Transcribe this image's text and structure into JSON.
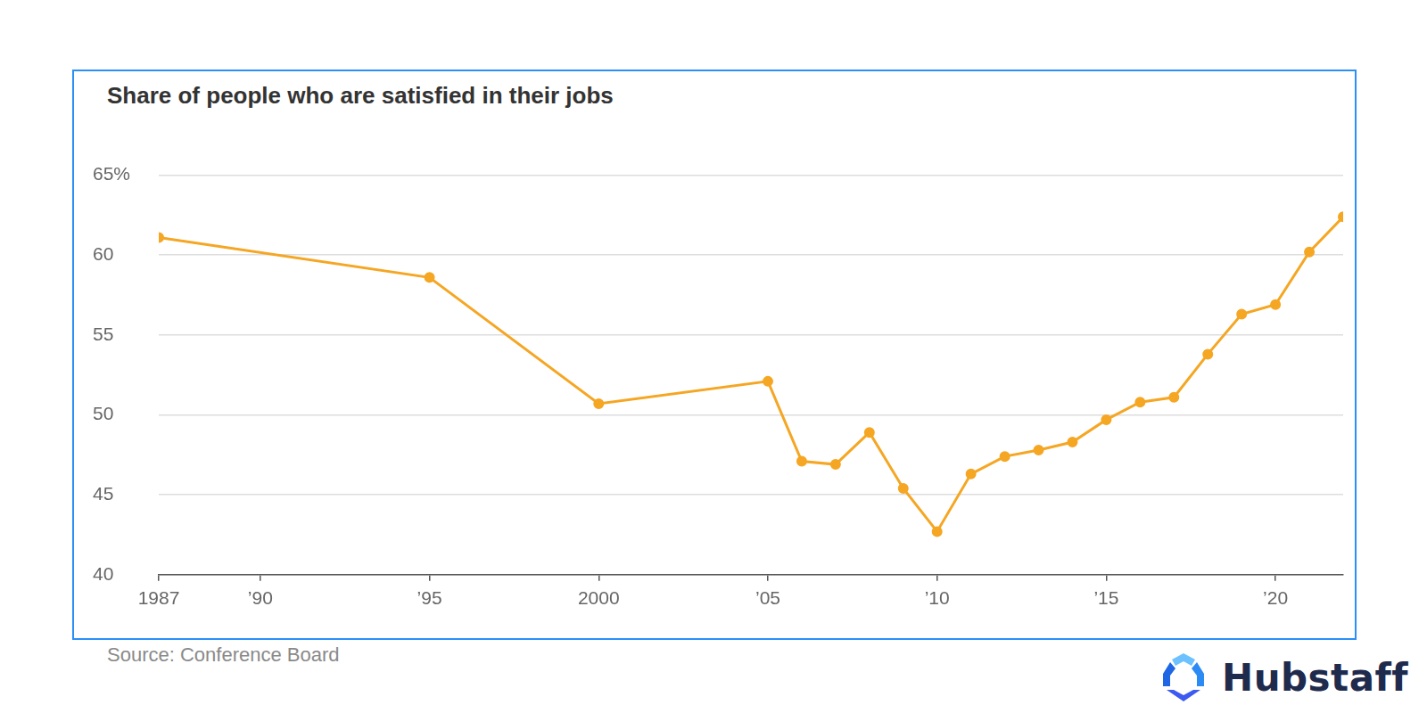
{
  "chart_data": {
    "type": "line",
    "title": "Share of people who are satisfied in their jobs",
    "source": "Source: Conference Board",
    "watermark": "Hubstaff",
    "x": [
      1987,
      1995,
      2000,
      2005,
      2006,
      2007,
      2008,
      2009,
      2010,
      2011,
      2012,
      2013,
      2014,
      2015,
      2016,
      2017,
      2018,
      2019,
      2020,
      2021,
      2022
    ],
    "values": [
      61.1,
      58.6,
      50.7,
      52.1,
      47.1,
      46.9,
      48.9,
      45.4,
      42.7,
      46.3,
      47.4,
      47.8,
      48.3,
      49.7,
      50.8,
      51.1,
      53.8,
      56.3,
      56.9,
      60.2,
      62.4
    ],
    "color": "#f5a623",
    "marker": "circle",
    "xlim": [
      1987,
      2022
    ],
    "xticks": [
      {
        "value": 1987,
        "label": "1987"
      },
      {
        "value": 1990,
        "label": "’90"
      },
      {
        "value": 1995,
        "label": "’95"
      },
      2000,
      {
        "value": 2005,
        "label": "’05"
      },
      {
        "value": 2010,
        "label": "’10"
      },
      {
        "value": 2015,
        "label": "’15"
      },
      {
        "value": 2020,
        "label": "’20"
      }
    ],
    "ylim": [
      40,
      65
    ],
    "yticks": [
      40,
      45,
      50,
      55,
      60,
      {
        "value": 65,
        "label": "65%"
      }
    ],
    "grid": true
  }
}
